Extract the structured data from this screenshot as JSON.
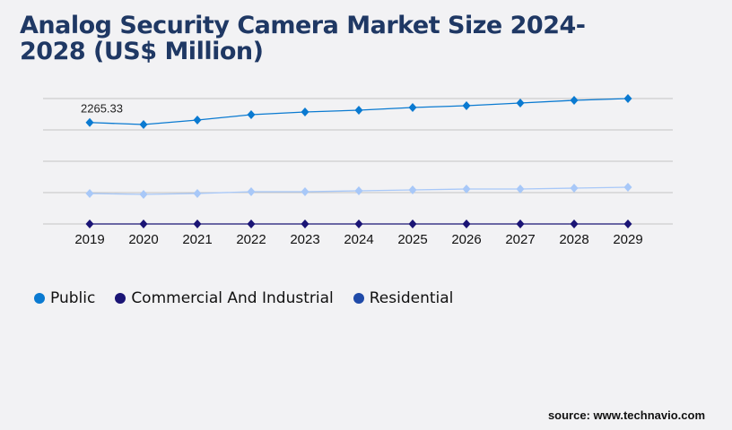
{
  "title": "Analog Security Camera Market Size 2024-2028 (US$ Million)",
  "source": "source: www.technavio.com",
  "chart_data": {
    "type": "line",
    "title": "Analog Security Camera Market Size 2024-2028 (US$ Million)",
    "xlabel": "",
    "ylabel": "",
    "categories": [
      "2019",
      "2020",
      "2021",
      "2022",
      "2023",
      "2024",
      "2025",
      "2026",
      "2027",
      "2028",
      "2029"
    ],
    "ylim": [
      0,
      2800
    ],
    "grid": true,
    "legend": "bottom-left",
    "series": [
      {
        "name": "Public",
        "color": "#0a7ad1",
        "values": [
          2265.33,
          2220,
          2320,
          2440,
          2500,
          2540,
          2600,
          2640,
          2700,
          2760,
          2800
        ]
      },
      {
        "name": "Commercial And Industrial",
        "color": "#1a1475",
        "values": [
          0,
          0,
          0,
          0,
          0,
          0,
          0,
          0,
          0,
          0,
          0
        ]
      },
      {
        "name": "Residential",
        "color": "#a8c8f8",
        "legend_color": "#1f4aa8",
        "values": [
          680,
          660,
          680,
          720,
          720,
          740,
          760,
          780,
          780,
          800,
          820
        ]
      }
    ],
    "annotations": [
      {
        "text": "2265.33",
        "series": "Public",
        "category": "2019"
      }
    ]
  }
}
